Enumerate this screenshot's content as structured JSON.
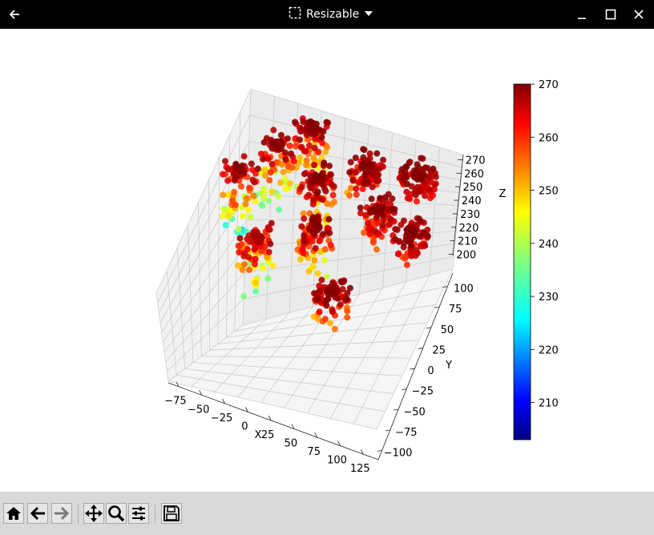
{
  "window": {
    "title": "Resizable",
    "icons": [
      "back-arrow-icon",
      "resize-icon",
      "dropdown-icon",
      "minimize-icon",
      "maximize-icon",
      "close-icon"
    ]
  },
  "toolbar": {
    "tools": [
      "home-icon",
      "back-icon",
      "forward-icon",
      "pan-icon",
      "zoom-icon",
      "configure-subplots-icon",
      "save-icon"
    ]
  },
  "chart_data": {
    "type": "scatter",
    "dimensions": 3,
    "title": "",
    "xlabel": "X",
    "ylabel": "Y",
    "zlabel": "Z",
    "xticks": [
      "−75",
      "−50",
      "−25",
      "0",
      "25",
      "50",
      "75",
      "100",
      "125"
    ],
    "yticks": [
      "−100",
      "−75",
      "−50",
      "−25",
      "0",
      "25",
      "50",
      "75",
      "100"
    ],
    "zticks": [
      "200",
      "210",
      "220",
      "230",
      "240",
      "250",
      "260",
      "270"
    ],
    "xlim": [
      -90,
      130
    ],
    "ylim": [
      -110,
      110
    ],
    "zlim": [
      195,
      275
    ],
    "colormap": "jet",
    "colorbar": {
      "min": 203,
      "max": 270,
      "ticks": [
        "210",
        "220",
        "230",
        "240",
        "250",
        "260",
        "270"
      ],
      "tick_values": [
        210,
        220,
        230,
        240,
        250,
        260,
        270
      ]
    },
    "grid": true,
    "series": [
      {
        "description": "3D terrain-like scatter surface colored by Z value",
        "clusters": [
          {
            "x": -70,
            "y": 20,
            "z_min": 225,
            "z_max": 270
          },
          {
            "x": -45,
            "y": 60,
            "z_min": 232,
            "z_max": 270
          },
          {
            "x": -20,
            "y": 90,
            "z_min": 238,
            "z_max": 270
          },
          {
            "x": 5,
            "y": 40,
            "z_min": 245,
            "z_max": 270
          },
          {
            "x": 20,
            "y": -10,
            "z_min": 240,
            "z_max": 270
          },
          {
            "x": 45,
            "y": 70,
            "z_min": 250,
            "z_max": 270
          },
          {
            "x": 70,
            "y": 30,
            "z_min": 252,
            "z_max": 270
          },
          {
            "x": 95,
            "y": 80,
            "z_min": 258,
            "z_max": 270
          },
          {
            "x": 110,
            "y": 20,
            "z_min": 255,
            "z_max": 270
          },
          {
            "x": 60,
            "y": -70,
            "z_min": 248,
            "z_max": 270
          },
          {
            "x": -30,
            "y": -40,
            "z_min": 230,
            "z_max": 268
          }
        ]
      }
    ]
  }
}
